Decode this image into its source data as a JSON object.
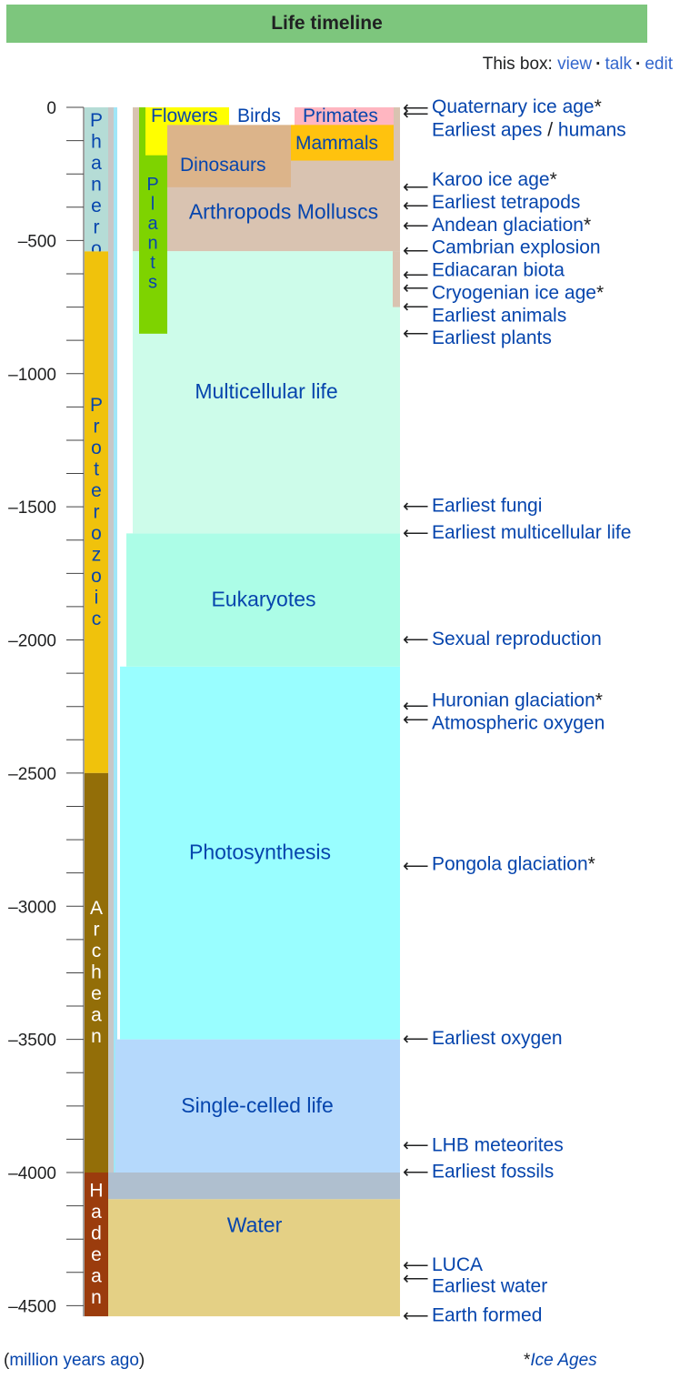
{
  "title": "Life timeline",
  "box_links": {
    "prefix": "This box:",
    "view": "view",
    "talk": "talk",
    "edit": "edit",
    "separator": "·"
  },
  "footer": {
    "open": "(",
    "units_label": "million years ago",
    "close": ")",
    "star": "*",
    "ice_ages": "Ice Ages"
  },
  "colors": {
    "title_bg": "#7dc67d",
    "link": "#0645ad",
    "phanerozoic": "#b5dcd6",
    "proterozoic": "#f0c20c",
    "archean": "#936e08",
    "hadean": "#9b3c0d",
    "flowers": "#ffff00",
    "birds": "#ffffff",
    "primates": "#ffb6c1",
    "mammals": "#ffc20e",
    "dinosaurs": "#dcb48a",
    "arthropods": "#d9c3b1",
    "plants": "#7ed300",
    "multicellular": "#cdfcea",
    "eukaryotes": "#acfde7",
    "photosynthesis": "#99feff",
    "single_celled": "#b5d9fc",
    "water": "#afbfcf",
    "earth": "#e4d085"
  },
  "chart_data": {
    "type": "timeline",
    "yunit": "million years ago",
    "ylim": [
      -4550,
      0
    ],
    "yticks_major": [
      0,
      -500,
      -1000,
      -1500,
      -2000,
      -2500,
      -3000,
      -3500,
      -4000,
      -4500
    ],
    "yticks_major_labels": [
      "0",
      "–500",
      "–1000",
      "–1500",
      "–2000",
      "–2500",
      "–3000",
      "–3500",
      "–4000",
      "–4500"
    ],
    "ytick_minor_step": 125,
    "eons": [
      {
        "key": "phanerozoic",
        "label": "Phanerozoic",
        "start": -541,
        "end": 0,
        "text_color": "#0645ad"
      },
      {
        "key": "proterozoic",
        "label": "Proterozoic",
        "start": -2500,
        "end": -541,
        "text_color": "#0645ad"
      },
      {
        "key": "archean",
        "label": "Archean",
        "start": -4000,
        "end": -2500,
        "text_color": "#ffffff"
      },
      {
        "key": "hadean",
        "label": "Hadean",
        "start": -4540,
        "end": -4000,
        "text_color": "#ffffff"
      }
    ],
    "life_bands": [
      {
        "key": "earth",
        "label": "",
        "start": -4540,
        "end": -4100
      },
      {
        "key": "water",
        "label": "Water",
        "start": -4100,
        "end": -4000
      },
      {
        "key": "single_celled",
        "label": "Single-celled life",
        "start": -4000,
        "end": -3500
      },
      {
        "key": "photosynthesis",
        "label": "Photosynthesis",
        "start": -3500,
        "end": -2100
      },
      {
        "key": "eukaryotes",
        "label": "Eukaryotes",
        "start": -2100,
        "end": -1600
      },
      {
        "key": "multicellular",
        "label": "Multicellular life",
        "start": -1600,
        "end": -540
      },
      {
        "key": "arthropods",
        "label": "Arthropods Molluscs",
        "start": -540,
        "end": 0
      }
    ],
    "band_label_positions": {
      "water": -4200,
      "single_celled": -3750,
      "photosynthesis": -2800,
      "eukaryotes": -1850,
      "multicellular": -1070,
      "arthropods": -395
    },
    "groups": [
      {
        "key": "plants",
        "label": "Plants",
        "start": -850,
        "end": 0
      },
      {
        "key": "dinosaurs",
        "label": "Dinosaurs",
        "start": -300,
        "end": -66
      },
      {
        "key": "mammals",
        "label": "Mammals",
        "start": -200,
        "end": 0
      },
      {
        "key": "flowers",
        "label": "Flowers",
        "start": -180,
        "end": 0
      },
      {
        "key": "birds",
        "label": "Birds",
        "start": -66,
        "end": 0
      },
      {
        "key": "primates",
        "label": "Primates",
        "start": -66,
        "end": 0
      }
    ],
    "events": [
      {
        "label": "Quaternary ice age",
        "value": -3,
        "ice_age": true,
        "text_y_value": 4
      },
      {
        "label": "Earliest apes",
        "label2": "humans",
        "sep": " / ",
        "value": -25,
        "text_y_value": -84
      },
      {
        "label": "Karoo ice age",
        "value": -300,
        "ice_age": true,
        "text_y_value": -270
      },
      {
        "label": "Earliest tetrapods",
        "value": -370,
        "text_y_value": -355
      },
      {
        "label": "Andean glaciation",
        "value": -445,
        "ice_age": true,
        "text_y_value": -440
      },
      {
        "label": "Cambrian explosion",
        "value": -540,
        "text_y_value": -525
      },
      {
        "label": "Ediacaran biota",
        "value": -630,
        "text_y_value": -610
      },
      {
        "label": "Cryogenian ice age",
        "value": -680,
        "ice_age": true,
        "text_y_value": -695
      },
      {
        "label": "Earliest animals",
        "value": -750,
        "text_y_value": -780
      },
      {
        "label": "Earliest plants",
        "value": -850,
        "text_y_value": -865
      },
      {
        "label": "Earliest fungi",
        "value": -1500,
        "text_y_value": -1495
      },
      {
        "label": "Earliest multicellular life",
        "value": -1600,
        "text_y_value": -1595
      },
      {
        "label": "Sexual reproduction",
        "value": -2000,
        "text_y_value": -1995
      },
      {
        "label": "Huronian glaciation",
        "value": -2250,
        "ice_age": true,
        "text_y_value": -2225
      },
      {
        "label": "Atmospheric oxygen",
        "value": -2300,
        "text_y_value": -2310
      },
      {
        "label": "Pongola glaciation",
        "value": -2850,
        "ice_age": true,
        "text_y_value": -2840
      },
      {
        "label": "Earliest oxygen",
        "value": -3500,
        "text_y_value": -3495
      },
      {
        "label": "LHB meteorites",
        "value": -3900,
        "text_y_value": -3895
      },
      {
        "label": "Earliest fossils",
        "value": -4000,
        "text_y_value": -3995
      },
      {
        "label": "LUCA",
        "value": -4350,
        "text_y_value": -4345
      },
      {
        "label": "Earliest water",
        "value": -4400,
        "text_y_value": -4425
      },
      {
        "label": "Earth formed",
        "value": -4540,
        "text_y_value": -4535
      }
    ]
  }
}
